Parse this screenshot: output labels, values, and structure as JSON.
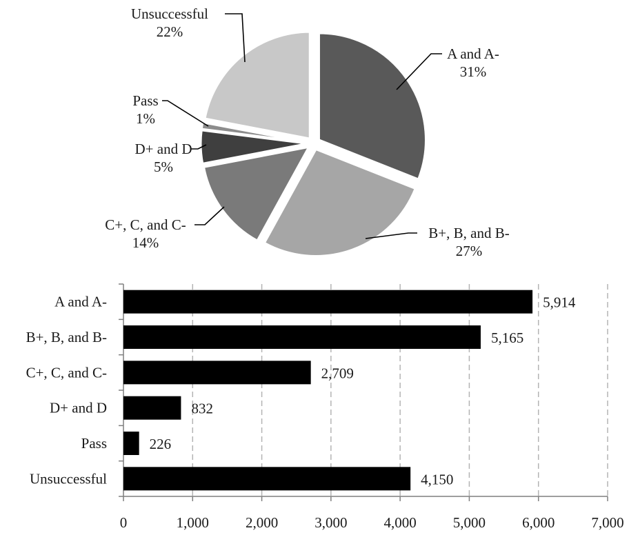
{
  "chart_data": [
    {
      "type": "pie",
      "categories": [
        "A and A-",
        "B+, B, and B-",
        "C+, C, and C-",
        "D+ and D",
        "Pass",
        "Unsuccessful"
      ],
      "values": [
        31,
        27,
        14,
        5,
        1,
        22
      ],
      "value_labels": [
        "31%",
        "27%",
        "14%",
        "5%",
        "1%",
        "22%"
      ],
      "colors": [
        "#595959",
        "#a6a6a6",
        "#7a7a7a",
        "#3f3f3f",
        "#8c8c8c",
        "#c8c8c8"
      ],
      "exploded": true,
      "legend": "none"
    },
    {
      "type": "bar",
      "orientation": "horizontal",
      "categories": [
        "A and A-",
        "B+, B, and B-",
        "C+, C, and C-",
        "D+ and D",
        "Pass",
        "Unsuccessful"
      ],
      "values": [
        5914,
        5165,
        2709,
        832,
        226,
        4150
      ],
      "data_labels": [
        "5,914",
        "5,165",
        "2,709",
        "832",
        "226",
        "4,150"
      ],
      "xlim": [
        0,
        7000
      ],
      "xticks": [
        0,
        1000,
        2000,
        3000,
        4000,
        5000,
        6000,
        7000
      ],
      "xtick_labels": [
        "0",
        "1,000",
        "2,000",
        "3,000",
        "4,000",
        "5,000",
        "6,000",
        "7,000"
      ],
      "grid": "vertical-dashed",
      "bar_color": "#000000",
      "legend": "none"
    }
  ]
}
